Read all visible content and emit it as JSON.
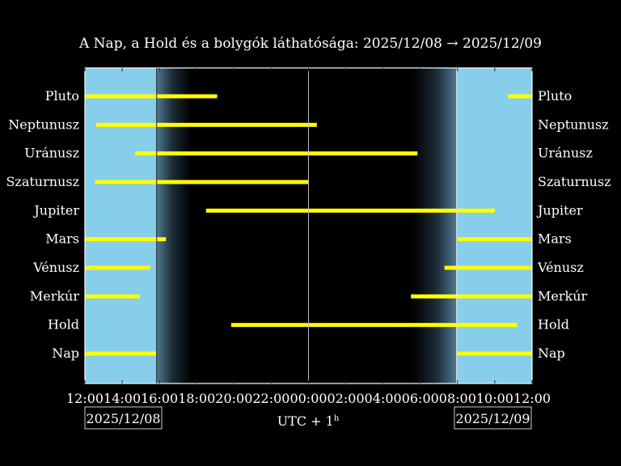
{
  "chart_data": {
    "type": "bar",
    "title": "A Nap, a Hold és a bolygók láthatósága: 2025/12/08 → 2025/12/09",
    "xlabel": "UTC + 1",
    "xlabel_superscript": "h",
    "x_unit": "hours (UTC+1) from 2025/12/08 12:00",
    "xlim": [
      0,
      24
    ],
    "x_tick_labels": [
      "12:00",
      "14:00",
      "16:00",
      "18:00",
      "20:00",
      "22:00",
      "00:00",
      "02:00",
      "04:00",
      "06:00",
      "08:00",
      "10:00",
      "12:00"
    ],
    "date_left": "2025/12/08",
    "date_right": "2025/12/09",
    "midnight": 12.0,
    "sunset": 3.85,
    "sunrise": 19.95,
    "twilight_evening": [
      3.85,
      5.7
    ],
    "twilight_morning": [
      17.6,
      19.95
    ],
    "colors": {
      "day": "#87ceeb",
      "night": "#000000",
      "bar": "#ffff00",
      "frame": "#ffffff"
    },
    "rows": [
      {
        "label": "Pluto",
        "segments": [
          [
            0,
            7.1
          ],
          [
            22.7,
            24
          ]
        ]
      },
      {
        "label": "Neptunusz",
        "segments": [
          [
            0.6,
            12.45
          ]
        ]
      },
      {
        "label": "Uránusz",
        "segments": [
          [
            2.7,
            17.85
          ]
        ]
      },
      {
        "label": "Szaturnusz",
        "segments": [
          [
            0.55,
            12.0
          ]
        ]
      },
      {
        "label": "Jupiter",
        "segments": [
          [
            6.5,
            22.0
          ]
        ]
      },
      {
        "label": "Mars",
        "segments": [
          [
            0,
            4.35
          ],
          [
            20.0,
            24
          ]
        ]
      },
      {
        "label": "Vénusz",
        "segments": [
          [
            0,
            3.5
          ],
          [
            19.3,
            24
          ]
        ]
      },
      {
        "label": "Merkúr",
        "segments": [
          [
            0,
            2.95
          ],
          [
            17.5,
            24
          ]
        ]
      },
      {
        "label": "Hold",
        "segments": [
          [
            7.85,
            23.2
          ]
        ]
      },
      {
        "label": "Nap",
        "segments": [
          [
            0,
            3.85
          ],
          [
            19.95,
            24
          ]
        ]
      }
    ]
  }
}
